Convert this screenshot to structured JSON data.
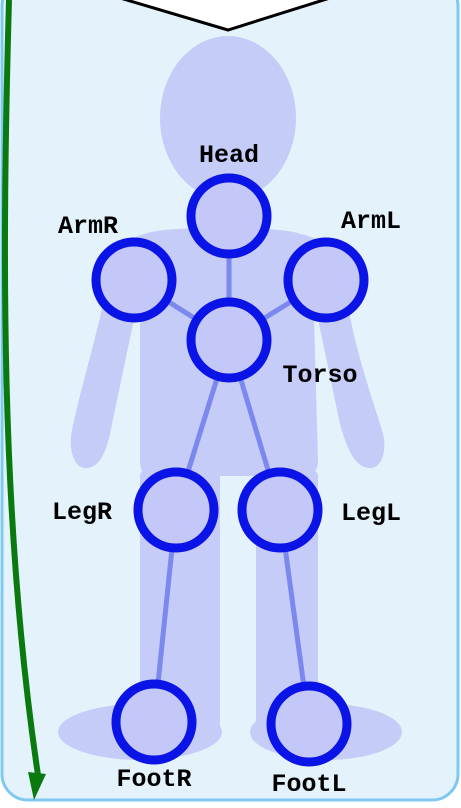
{
  "diagram": {
    "colors": {
      "panel_fill": "#e3f2fb",
      "panel_border": "#7fc9f0",
      "arrow_green": "#0a7a10",
      "body_silhouette": "#c5ccf8",
      "bone_line": "#7c88ee",
      "joint_ring": "#0a14e6",
      "joint_fill": "#c3c8f8",
      "pointer_fill": "#ffffff",
      "pointer_stroke": "#000000"
    },
    "nodes": [
      {
        "id": "head",
        "label": "Head"
      },
      {
        "id": "armr",
        "label": "ArmR"
      },
      {
        "id": "arml",
        "label": "ArmL"
      },
      {
        "id": "torso",
        "label": "Torso"
      },
      {
        "id": "legr",
        "label": "LegR"
      },
      {
        "id": "legl",
        "label": "LegL"
      },
      {
        "id": "footr",
        "label": "FootR"
      },
      {
        "id": "footl",
        "label": "FootL"
      }
    ],
    "edges": [
      [
        "head",
        "torso"
      ],
      [
        "armr",
        "torso"
      ],
      [
        "arml",
        "torso"
      ],
      [
        "torso",
        "legr"
      ],
      [
        "torso",
        "legl"
      ],
      [
        "legr",
        "footr"
      ],
      [
        "legl",
        "footl"
      ]
    ]
  }
}
